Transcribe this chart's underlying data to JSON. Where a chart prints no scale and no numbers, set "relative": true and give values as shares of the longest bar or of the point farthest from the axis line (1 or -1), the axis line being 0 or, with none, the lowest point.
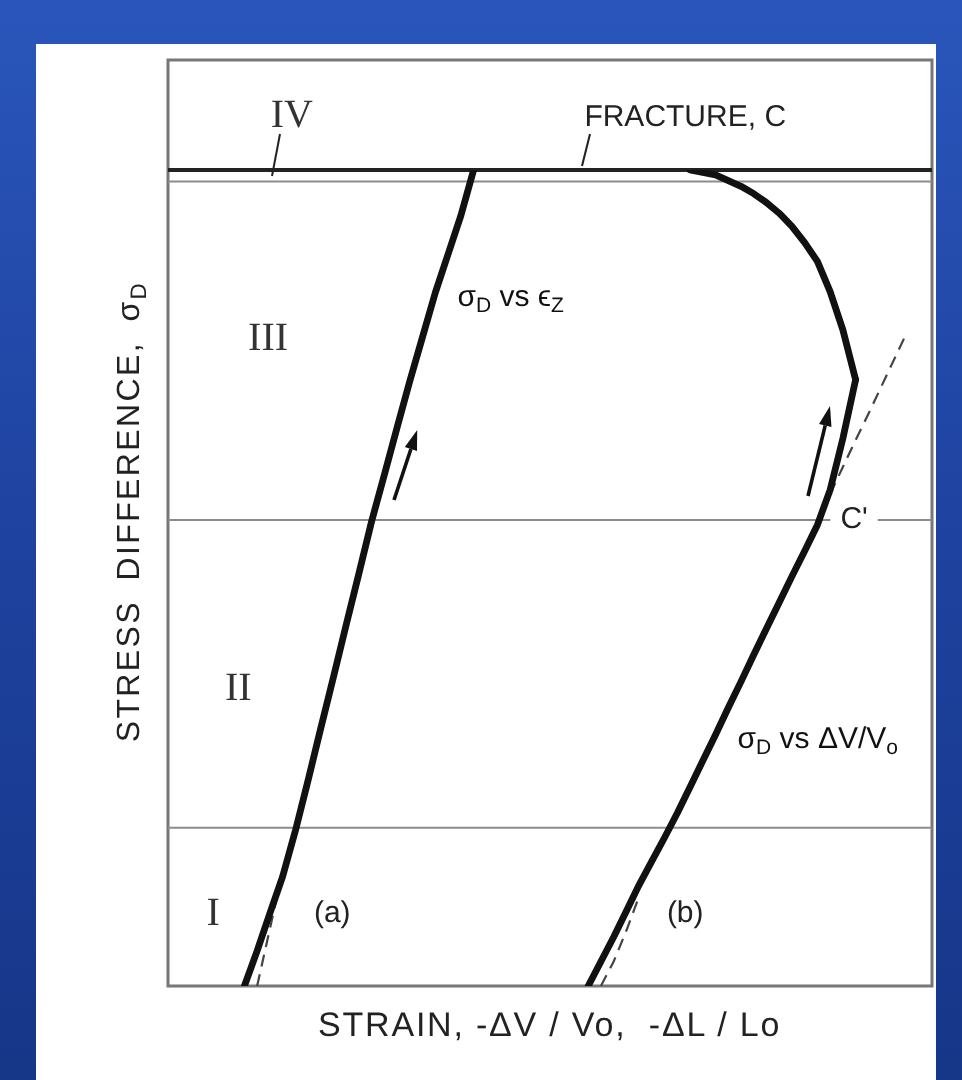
{
  "chart_data": {
    "type": "line",
    "xlabel": "STRAIN, -ΔV / Vo,  -ΔL / Lo",
    "ylabel": "STRESS DIFFERENCE, σ$_{D}$",
    "relative": true,
    "tick_labels": false,
    "marker": "none",
    "categories": [
      null,
      null,
      null,
      null,
      null,
      null,
      null,
      null,
      null,
      null,
      null,
      null,
      null,
      null,
      null,
      null,
      null,
      null,
      null,
      null,
      null,
      null,
      null,
      null,
      null,
      null,
      null,
      null,
      null,
      null,
      null,
      null,
      null,
      null,
      null,
      null,
      null,
      null,
      null,
      null,
      null,
      null,
      null,
      null,
      null,
      null,
      null,
      null,
      null,
      null,
      null,
      null,
      null,
      null,
      null,
      null,
      null,
      null,
      null,
      null,
      null
    ],
    "series": [
      {
        "name": "σ$_{D}$ vs ϵ$_{Z}$",
        "color": "#111111",
        "line_style": "solid",
        "values": [
          null,
          null,
          null,
          null,
          null,
          null,
          0,
          0.043,
          0.089,
          0.134,
          0.19,
          0.252,
          0.316,
          0.379,
          0.443,
          0.506,
          0.57,
          0.627,
          0.685,
          0.742,
          0.796,
          0.85,
          0.897,
          0.944,
          1,
          null,
          null,
          null,
          null,
          null,
          null,
          null,
          null,
          null,
          null,
          null,
          null,
          null,
          null,
          null,
          null,
          null,
          null,
          null,
          null,
          null,
          null,
          null,
          null,
          null,
          null,
          null,
          null,
          null,
          null,
          null,
          null,
          null,
          null,
          null,
          null
        ]
      },
      {
        "color": "#444444",
        "line_style": "dashed",
        "values": [
          null,
          null,
          null,
          null,
          null,
          null,
          null,
          0,
          0.07,
          0.14,
          null,
          null,
          null,
          null,
          null,
          null,
          null,
          null,
          null,
          null,
          null,
          null,
          null,
          null,
          null,
          null,
          null,
          null,
          null,
          null,
          null,
          null,
          null,
          null,
          null,
          null,
          null,
          null,
          null,
          null,
          null,
          null,
          null,
          null,
          null,
          null,
          null,
          null,
          null,
          null,
          null,
          null,
          null,
          null,
          null,
          null,
          null,
          null,
          null,
          null,
          null
        ]
      },
      {
        "name": "σ$_{D}$ vs ΔV/V$_{o}$",
        "color": "#111111",
        "line_style": "solid",
        "values": [
          null,
          null,
          null,
          null,
          null,
          null,
          null,
          null,
          null,
          null,
          null,
          null,
          null,
          null,
          null,
          null,
          null,
          null,
          null,
          null,
          null,
          null,
          null,
          null,
          null,
          null,
          null,
          null,
          null,
          null,
          null,
          null,
          null,
          0,
          0.03,
          0.06,
          0.092,
          0.124,
          0.153,
          0.182,
          0.212,
          0.244,
          0.276,
          0.308,
          0.341,
          0.373,
          0.406,
          0.438,
          0.47,
          0.502,
          0.533,
          0.565,
          0.608,
          0.671,
          0.743,
          null,
          null,
          null,
          null,
          null,
          null
        ]
      },
      {
        "color": "#111111",
        "line_style": "solid",
        "values": [
          null,
          null,
          null,
          null,
          null,
          null,
          null,
          null,
          null,
          null,
          null,
          null,
          null,
          null,
          null,
          null,
          null,
          null,
          null,
          null,
          null,
          null,
          null,
          null,
          null,
          null,
          null,
          null,
          null,
          null,
          null,
          null,
          null,
          null,
          null,
          null,
          null,
          null,
          null,
          null,
          null,
          1,
          0.997,
          0.994,
          0.987,
          0.98,
          0.971,
          0.96,
          0.947,
          0.931,
          0.911,
          0.888,
          0.851,
          0.804,
          0.743,
          null,
          null,
          null,
          null,
          null,
          null
        ]
      },
      {
        "color": "#444444",
        "line_style": "dashed",
        "values": [
          null,
          null,
          null,
          null,
          null,
          null,
          null,
          null,
          null,
          null,
          null,
          null,
          null,
          null,
          null,
          null,
          null,
          null,
          null,
          null,
          null,
          null,
          null,
          null,
          null,
          null,
          null,
          null,
          null,
          null,
          null,
          null,
          null,
          null,
          0,
          0.03,
          0.068,
          0.11,
          null,
          null,
          null,
          null,
          null,
          null,
          null,
          null,
          null,
          null,
          null,
          null,
          null,
          null,
          null,
          null,
          null,
          null,
          null,
          null,
          null,
          null,
          null
        ]
      },
      {
        "color": "#444444",
        "line_style": "dashed",
        "values": [
          null,
          null,
          null,
          null,
          null,
          null,
          null,
          null,
          null,
          null,
          null,
          null,
          null,
          null,
          null,
          null,
          null,
          null,
          null,
          null,
          null,
          null,
          null,
          null,
          null,
          null,
          null,
          null,
          null,
          null,
          null,
          null,
          null,
          null,
          null,
          null,
          null,
          null,
          null,
          null,
          null,
          null,
          null,
          null,
          null,
          null,
          null,
          null,
          null,
          null,
          null,
          null,
          0.603,
          0.636,
          0.669,
          0.701,
          0.734,
          0.767,
          0.8,
          null,
          null
        ]
      }
    ],
    "ref_lines": [
      {
        "axis": "y",
        "value": 0.194,
        "color": "#8c8c8c"
      },
      {
        "axis": "y",
        "value": 0.571,
        "label": "C'",
        "color": "#8c8c8c"
      },
      {
        "axis": "y",
        "value": 0.986,
        "color": "#8c8c8c"
      },
      {
        "axis": "y",
        "value": 1,
        "label": "FRACTURE, C",
        "color": "#222222"
      }
    ],
    "annotations": [
      "I",
      "II",
      "III",
      "IV",
      "(a)",
      "(b)"
    ]
  }
}
